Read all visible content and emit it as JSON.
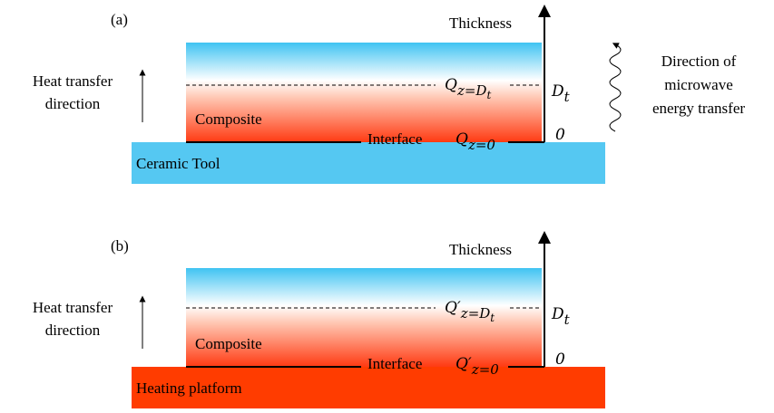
{
  "panels": [
    {
      "label": "(a)",
      "axis_label": "Thickness",
      "heat_label": [
        "Heat transfer",
        "direction"
      ],
      "layer": "Composite",
      "interface": "Interface",
      "base": "Ceramic Tool",
      "q_top": {
        "symbol": "Q",
        "sub": "z=D",
        "subsub": "t"
      },
      "q_bottom": {
        "symbol": "Q",
        "sub": "z=0"
      },
      "d_label": {
        "symbol": "D",
        "sub": "t"
      },
      "zero": "0",
      "microwave_label": [
        "Direction of",
        "microwave",
        "energy transfer"
      ]
    },
    {
      "label": "(b)",
      "axis_label": "Thickness",
      "heat_label": [
        "Heat transfer",
        "direction"
      ],
      "layer": "Composite",
      "interface": "Interface",
      "base": "Heating platform",
      "q_top": {
        "symbol": "Q′",
        "sub": "z=D",
        "subsub": "t"
      },
      "q_bottom": {
        "symbol": "Q′",
        "sub": "z=0"
      },
      "d_label": {
        "symbol": "D",
        "sub": "t"
      },
      "zero": "0"
    }
  ]
}
